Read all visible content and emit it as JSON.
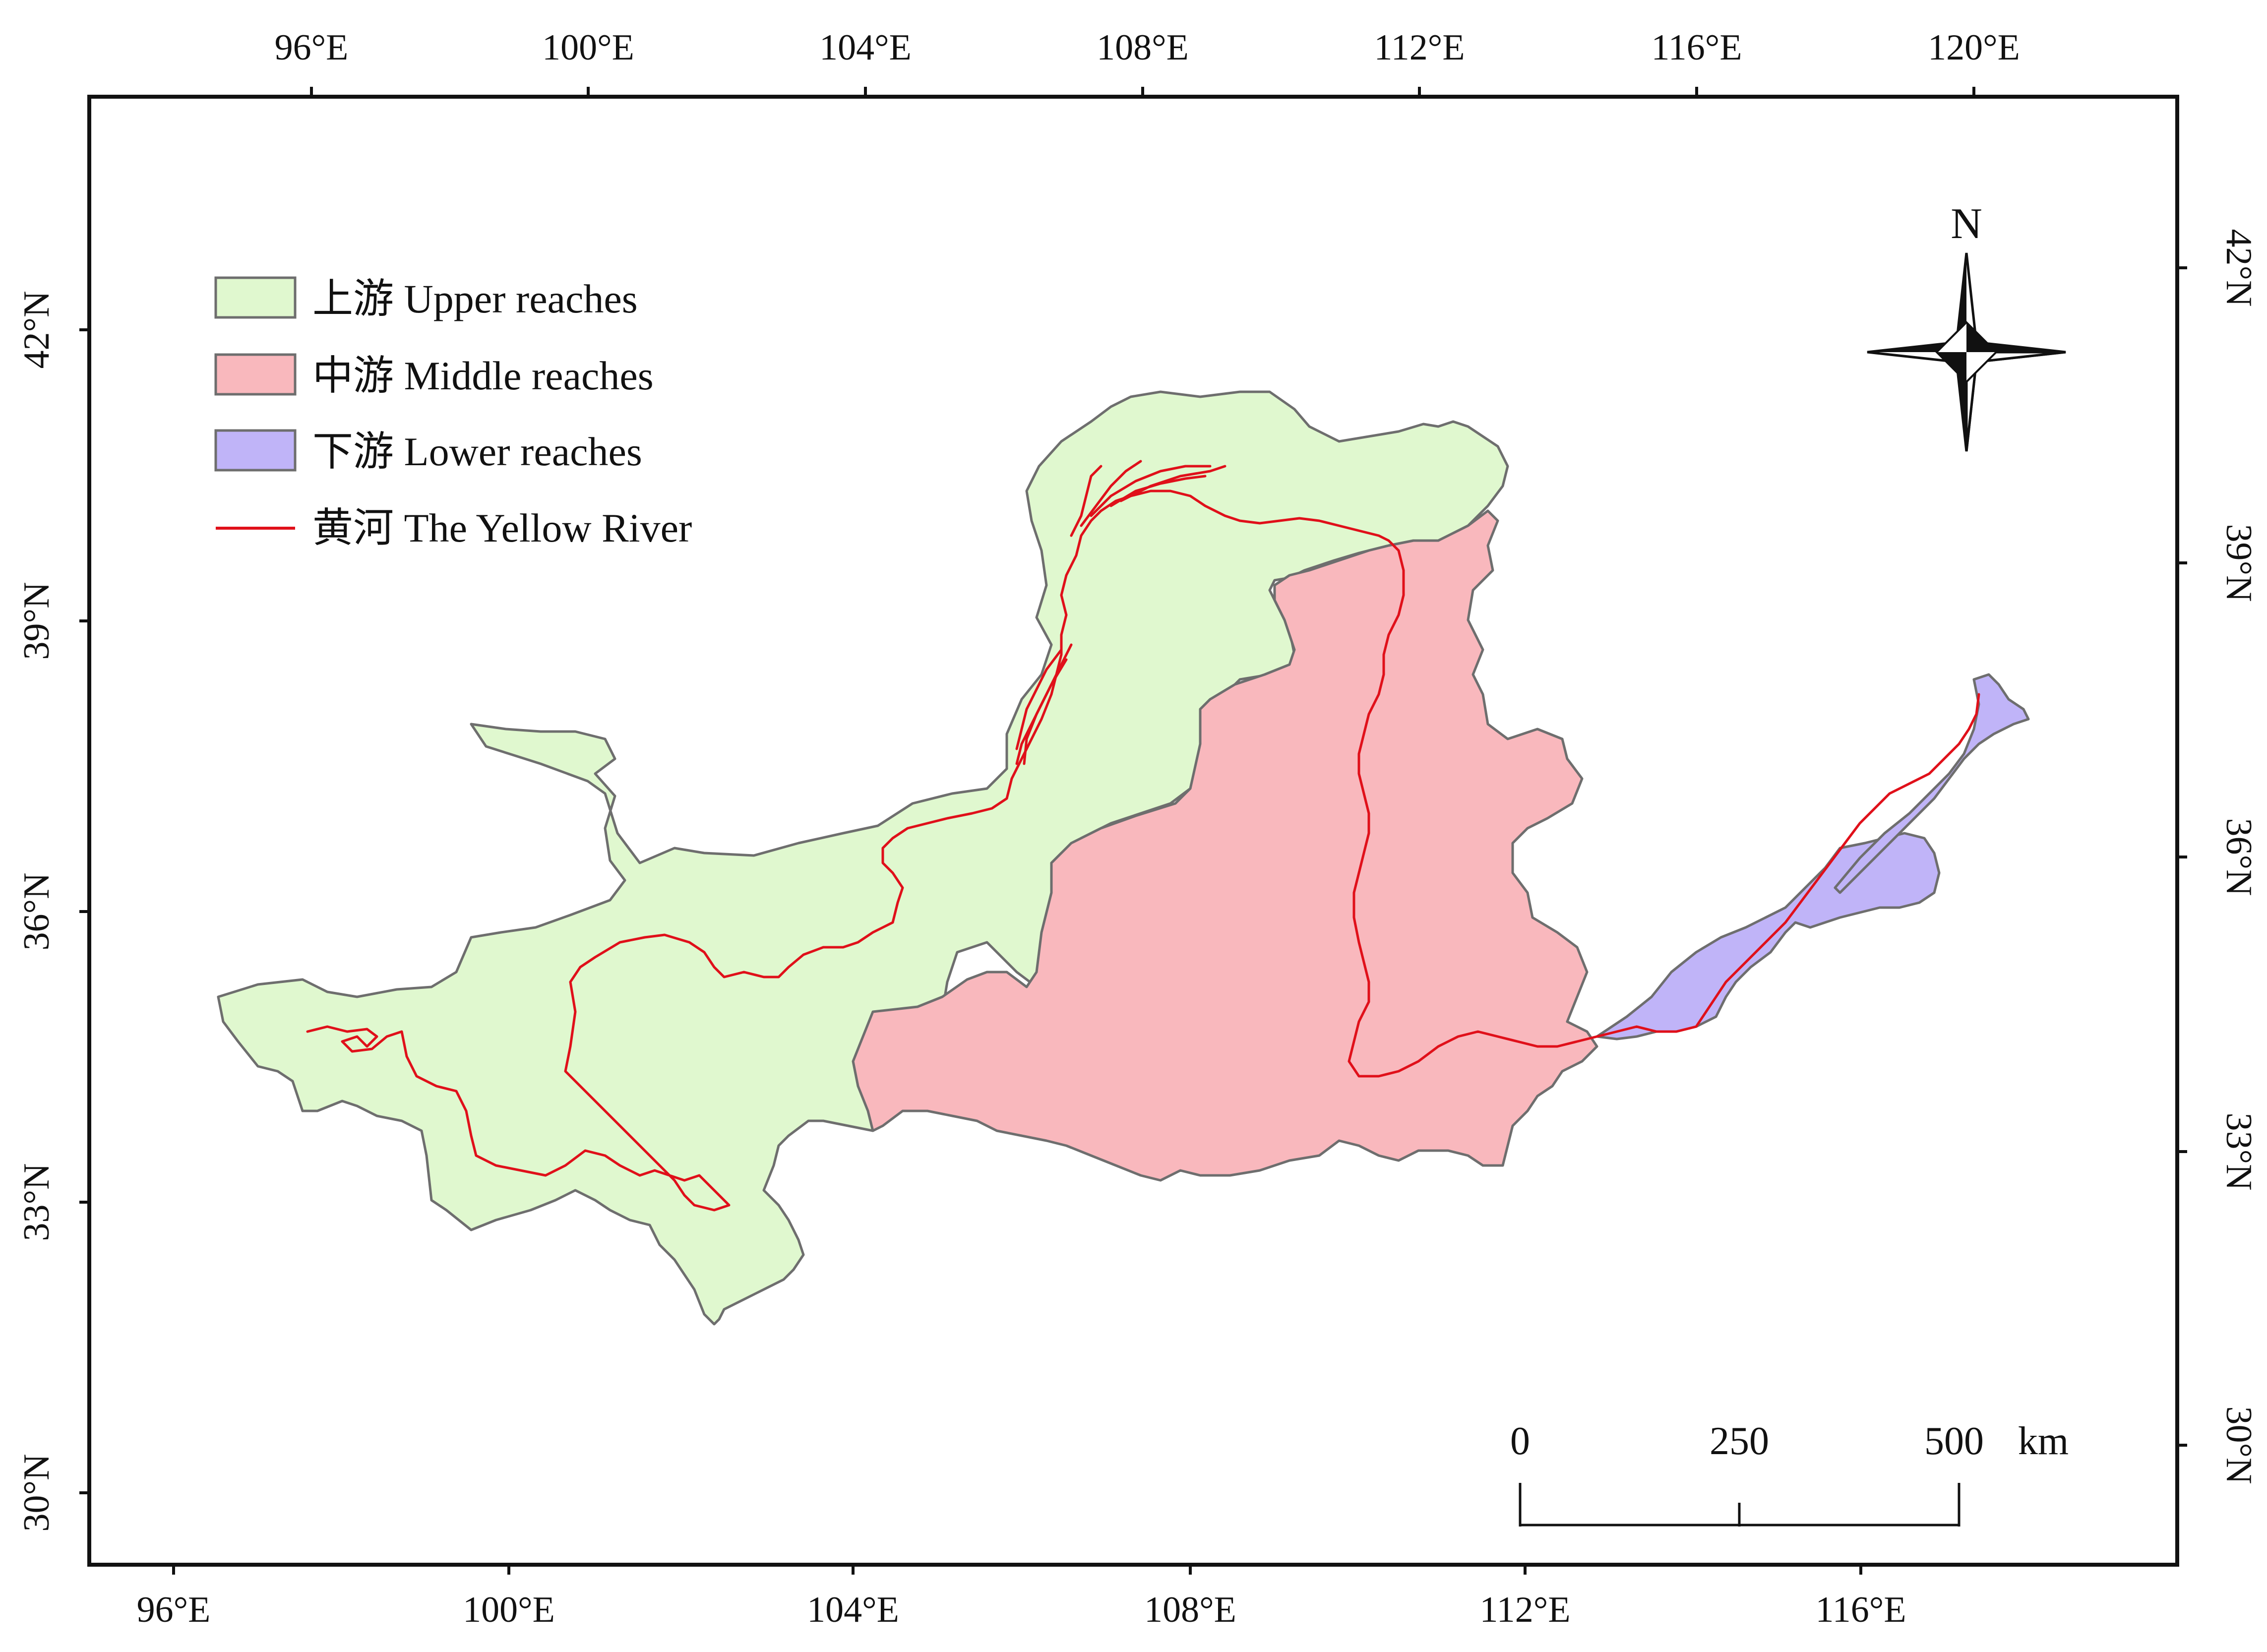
{
  "map": {
    "top_longitude_ticks": [
      "96°E",
      "100°E",
      "104°E",
      "108°E",
      "112°E",
      "116°E",
      "120°E"
    ],
    "bottom_longitude_ticks": [
      "96°E",
      "100°E",
      "104°E",
      "108°E",
      "112°E",
      "116°E"
    ],
    "left_latitude_ticks": [
      "42°N",
      "39°N",
      "36°N",
      "33°N",
      "30°N"
    ],
    "right_latitude_ticks": [
      "42°N",
      "39°N",
      "36°N",
      "33°N",
      "30°N"
    ]
  },
  "legend": {
    "items": [
      {
        "label": "上游 Upper reaches",
        "color": "#e0f8cf"
      },
      {
        "label": "中游 Middle reaches",
        "color": "#f9b8bd"
      },
      {
        "label": "下游 Lower reaches",
        "color": "#c0b4f8"
      },
      {
        "label": "黄河 The Yellow River",
        "color": "#e0101a"
      }
    ]
  },
  "north_arrow": {
    "label": "N"
  },
  "scale_bar": {
    "labels": [
      "0",
      "250",
      "500",
      "km"
    ]
  },
  "colors": {
    "upper": "#e0f8cf",
    "middle": "#f9b8bd",
    "lower": "#c0b4f8",
    "river": "#e0101a",
    "boundary": "#6e6e6e",
    "frame": "#111111"
  }
}
